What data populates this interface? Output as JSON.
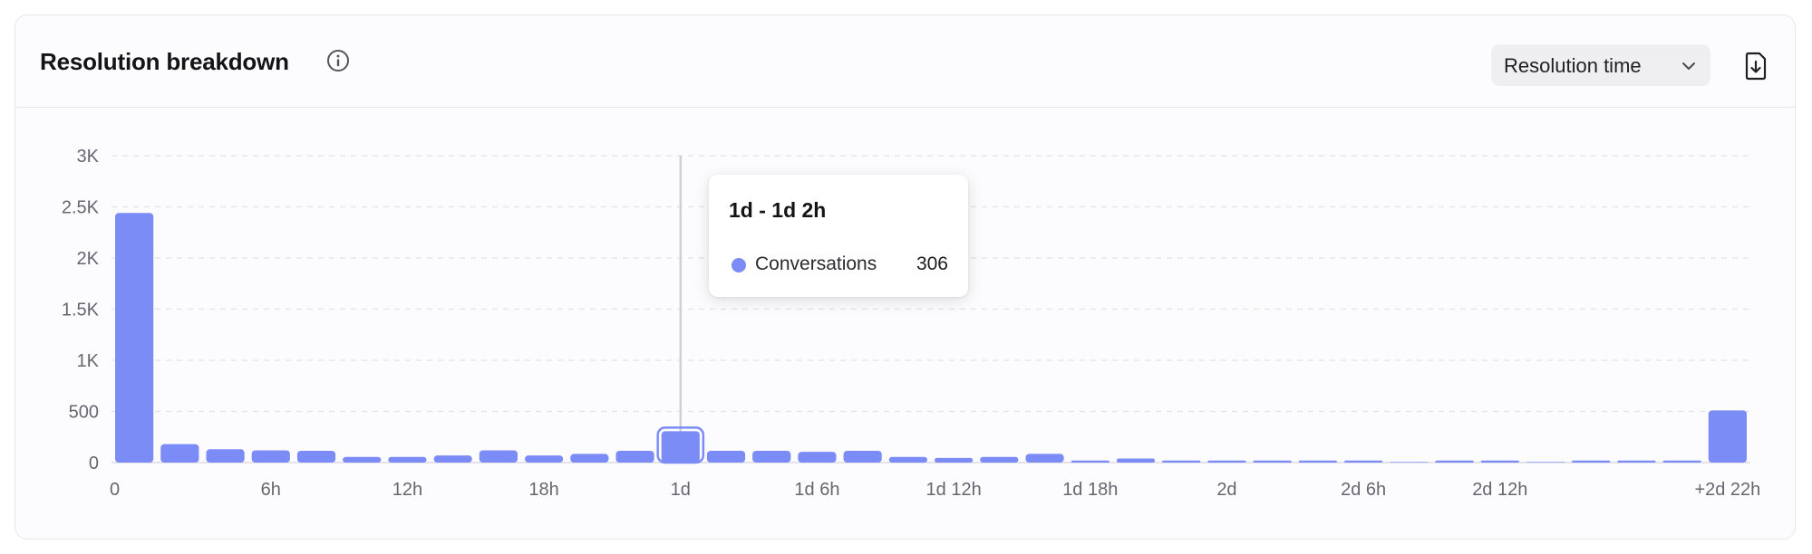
{
  "header": {
    "title": "Resolution breakdown",
    "info_icon": "info-icon",
    "dropdown_label": "Resolution time",
    "dropdown_icon": "chevron-down-icon",
    "download_icon": "file-download-icon"
  },
  "colors": {
    "bar": "#7b8cf6",
    "bar_active": "#7b8cf6",
    "grid": "#e1e1e8",
    "axis_text": "#666670",
    "cursor_line": "#cfcfd6"
  },
  "tooltip": {
    "title": "1d - 1d 2h",
    "series": "Conversations",
    "value": "306"
  },
  "chart_data": {
    "type": "bar",
    "title": "Resolution breakdown",
    "xlabel": "",
    "ylabel": "",
    "ylim": [
      0,
      3000
    ],
    "grid": true,
    "yticks": [
      {
        "value": 0,
        "label": "0"
      },
      {
        "value": 500,
        "label": "500"
      },
      {
        "value": 1000,
        "label": "1K"
      },
      {
        "value": 1500,
        "label": "1.5K"
      },
      {
        "value": 2000,
        "label": "2K"
      },
      {
        "value": 2500,
        "label": "2.5K"
      },
      {
        "value": 3000,
        "label": "3K"
      }
    ],
    "xticks": [
      {
        "index": 0,
        "label": "0"
      },
      {
        "index": 3,
        "label": "6h"
      },
      {
        "index": 6,
        "label": "12h"
      },
      {
        "index": 9,
        "label": "18h"
      },
      {
        "index": 12,
        "label": "1d"
      },
      {
        "index": 15,
        "label": "1d 6h"
      },
      {
        "index": 18,
        "label": "1d 12h"
      },
      {
        "index": 21,
        "label": "1d 18h"
      },
      {
        "index": 24,
        "label": "2d"
      },
      {
        "index": 27,
        "label": "2d 6h"
      },
      {
        "index": 30,
        "label": "2d 12h"
      },
      {
        "index": 35,
        "label": "+2d 22h"
      }
    ],
    "series": [
      {
        "name": "Conversations",
        "values": [
          2440,
          180,
          130,
          120,
          115,
          55,
          55,
          70,
          120,
          70,
          85,
          115,
          306,
          115,
          115,
          105,
          115,
          55,
          45,
          55,
          85,
          20,
          40,
          20,
          20,
          20,
          20,
          20,
          5,
          20,
          20,
          5,
          20,
          20,
          20,
          510
        ]
      }
    ],
    "active_index": 12
  }
}
